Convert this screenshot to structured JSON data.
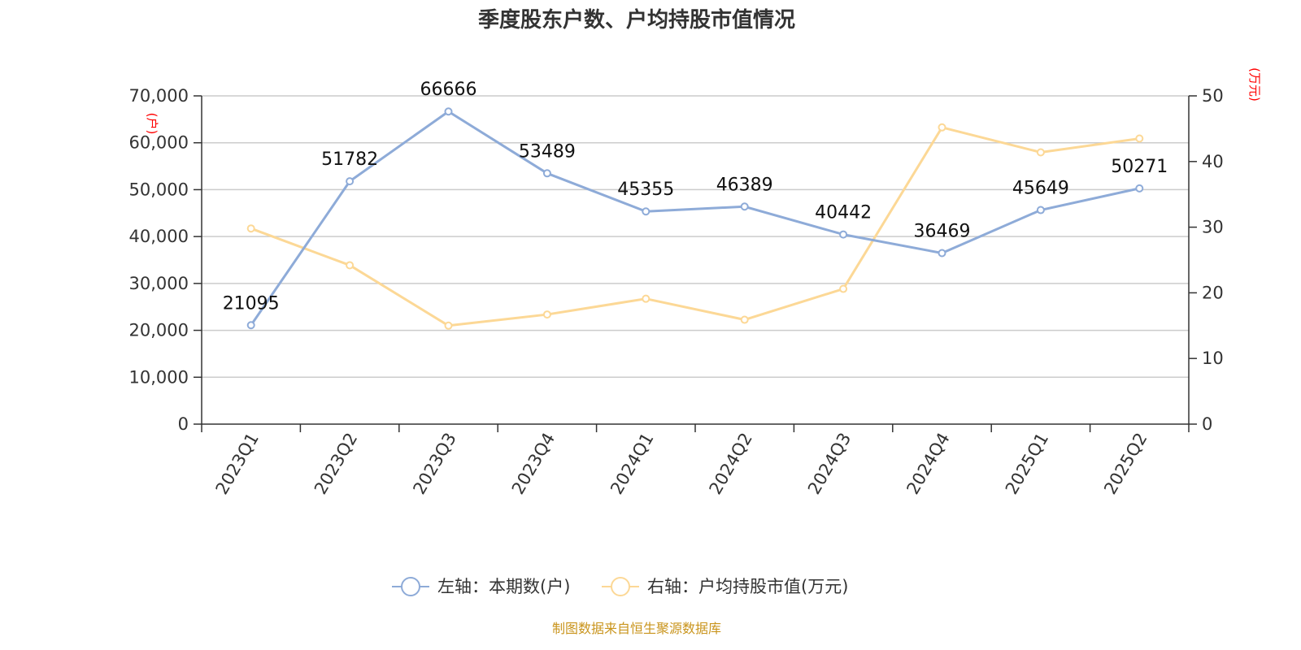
{
  "title": "季度股东户数、户均持股市值情况",
  "source": "制图数据来自恒生聚源数据库",
  "colors": {
    "left_series": "#8eabd8",
    "right_series": "#fcd896",
    "grid": "#cccccc",
    "axis": "#333333",
    "unit": "#ff0000",
    "source": "#c9941c"
  },
  "chart_data": {
    "type": "line",
    "title": "季度股东户数、户均持股市值情况",
    "categories": [
      "2023Q1",
      "2023Q2",
      "2023Q3",
      "2023Q4",
      "2024Q1",
      "2024Q2",
      "2024Q3",
      "2024Q4",
      "2025Q1",
      "2025Q2"
    ],
    "left_axis": {
      "unit": "(户)",
      "ylim": [
        0,
        70000
      ],
      "ticks": [
        0,
        10000,
        20000,
        30000,
        40000,
        50000,
        60000,
        70000
      ],
      "tick_labels": [
        "0",
        "10,000",
        "20,000",
        "30,000",
        "40,000",
        "50,000",
        "60,000",
        "70,000"
      ]
    },
    "right_axis": {
      "unit": "(万元)",
      "ylim": [
        0,
        50
      ],
      "ticks": [
        0,
        10,
        20,
        30,
        40,
        50
      ],
      "tick_labels": [
        "0",
        "10",
        "20",
        "30",
        "40",
        "50"
      ]
    },
    "grid": true,
    "legend_position": "bottom",
    "series": [
      {
        "name": "左轴：本期数(户)",
        "axis": "left",
        "color": "#8eabd8",
        "values": [
          21095,
          51782,
          66666,
          53489,
          45355,
          46389,
          40442,
          36469,
          45649,
          50271
        ],
        "labels": [
          "21095",
          "51782",
          "66666",
          "53489",
          "45355",
          "46389",
          "40442",
          "36469",
          "45649",
          "50271"
        ]
      },
      {
        "name": "右轴：户均持股市值(万元)",
        "axis": "right",
        "color": "#fcd896",
        "values": [
          29.8,
          24.2,
          15.0,
          16.7,
          19.1,
          15.9,
          20.6,
          45.2,
          41.4,
          43.5
        ]
      }
    ]
  }
}
